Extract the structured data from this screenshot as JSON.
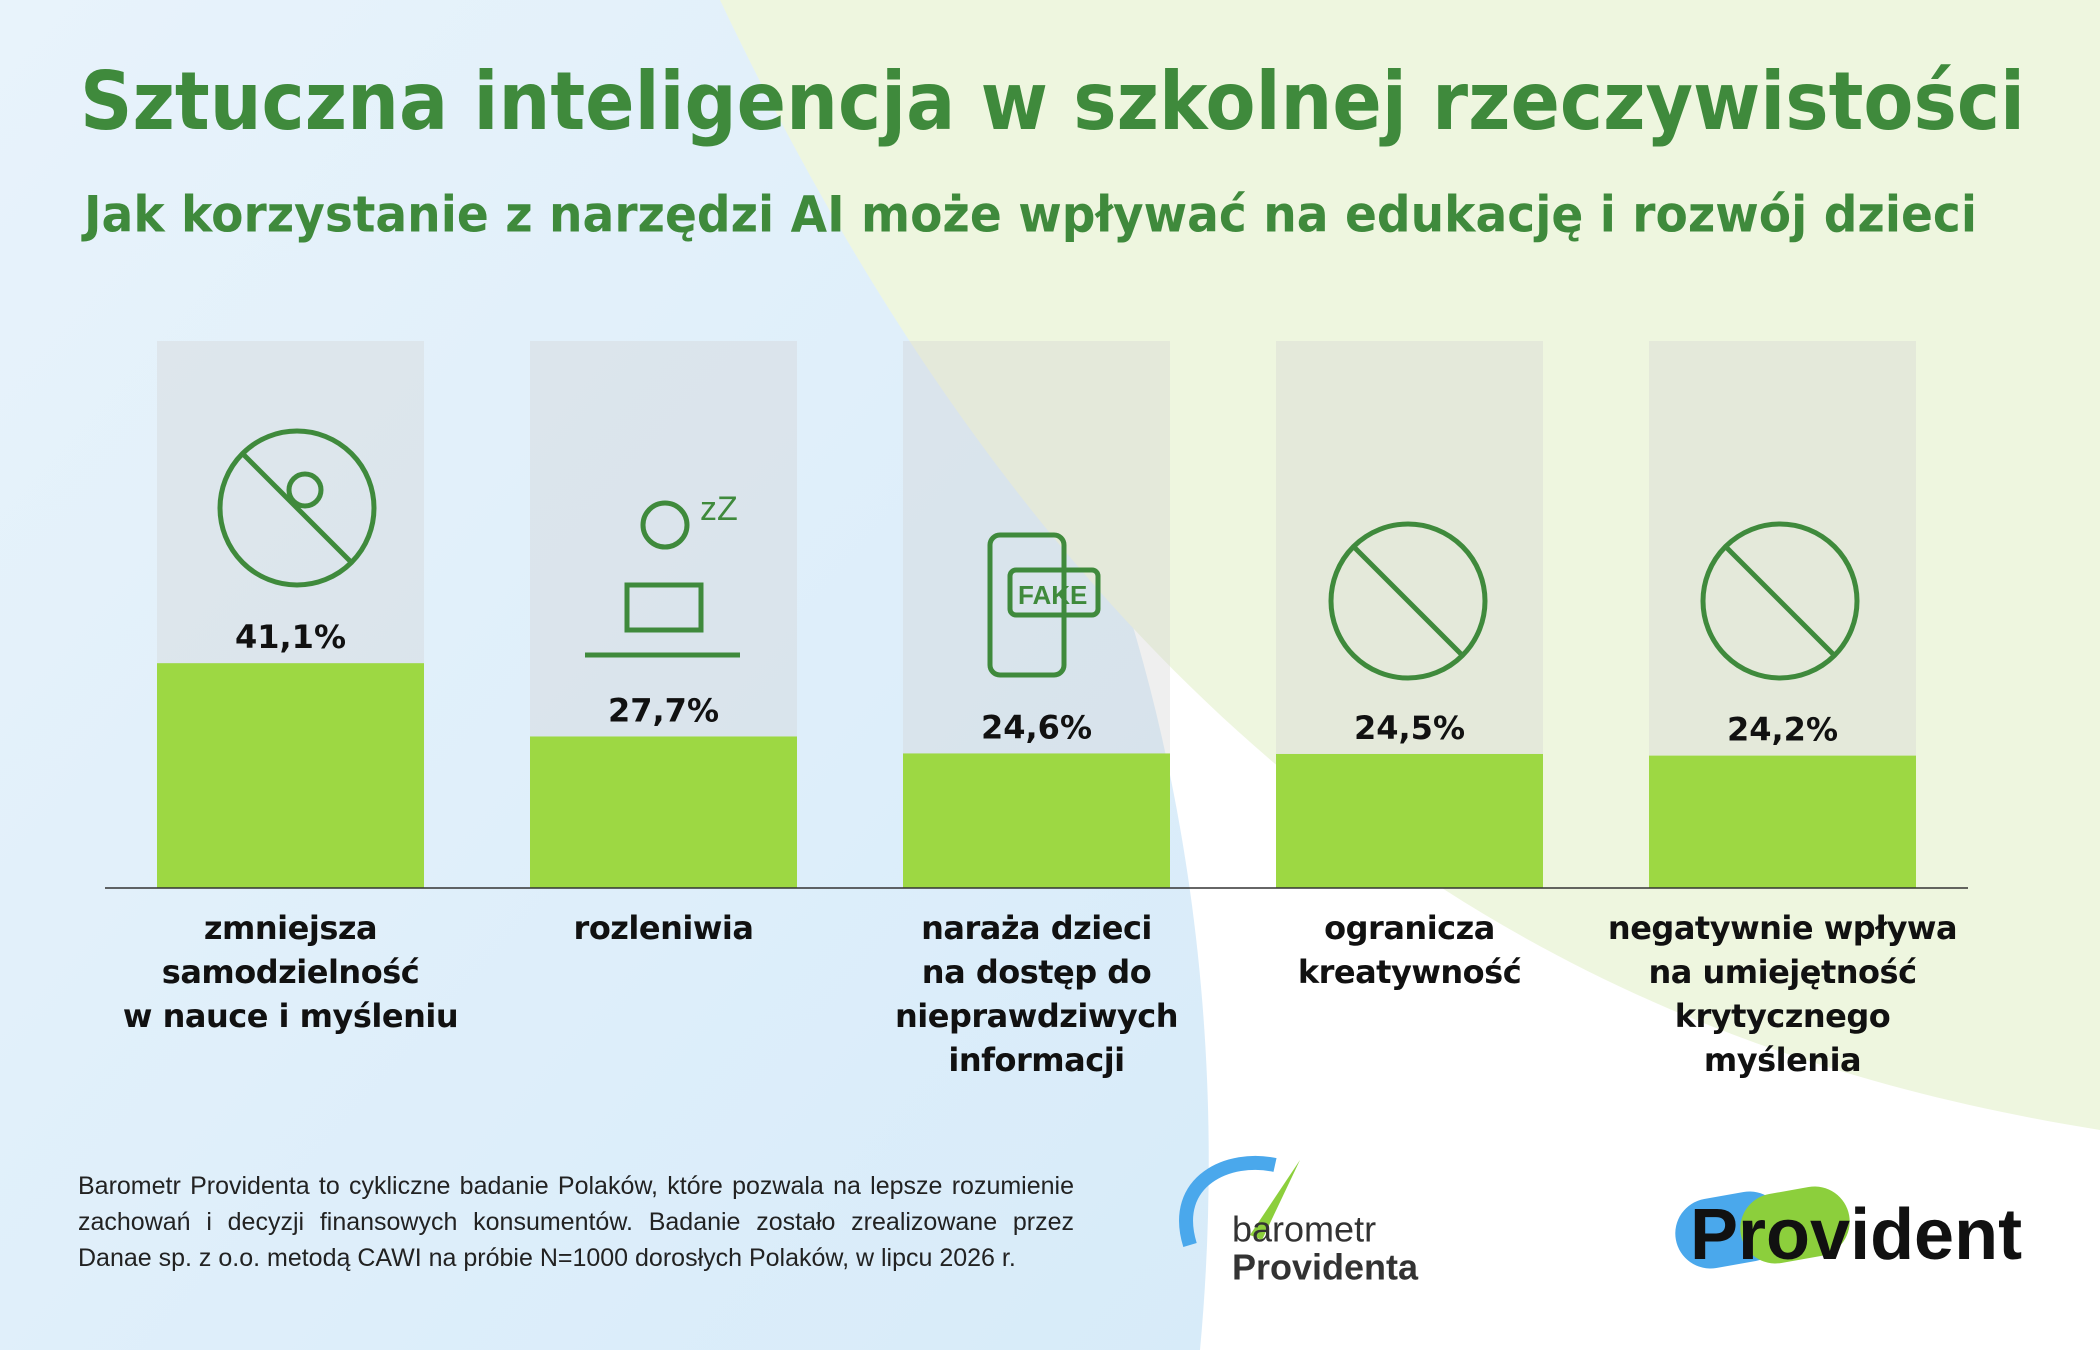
{
  "chart_data": {
    "type": "bar",
    "title": "Sztuczna inteligencja w szkolnej rzeczywistości",
    "subtitle": "Jak korzystanie z narzędzi AI może wpływać na edukację i rozwój dzieci",
    "categories": [
      "zmniejsza\nsamodzielność\nw nauce i myśleniu",
      "rozleniwia",
      "naraża dzieci\nna dostęp do\nnieprawdziwych\ninformacji",
      "ogranicza\nkreatywność",
      "negatywnie wpływa\nna umiejętność\nkrytycznego myślenia"
    ],
    "values": [
      41.1,
      27.7,
      24.6,
      24.5,
      24.2
    ],
    "value_labels": [
      "41,1%",
      "27,7%",
      "24,6%",
      "24,5%",
      "24,2%"
    ],
    "color": "#9dd843",
    "ylim": [
      0,
      100
    ]
  },
  "footnote": "Barometr Providenta to cykliczne badanie Polaków, które pozwala na lepsze rozumienie zachowań i decyzji finansowych konsumentów. Badanie zostało zrealizowane przez Danae sp. z o.o. metodą CAWI na próbie N=1000 dorosłych Polaków, w lipcu 2026 r.",
  "logos": {
    "barometr_top": "barometr",
    "barometr_bottom": "Providenta",
    "provident": "Provident"
  }
}
